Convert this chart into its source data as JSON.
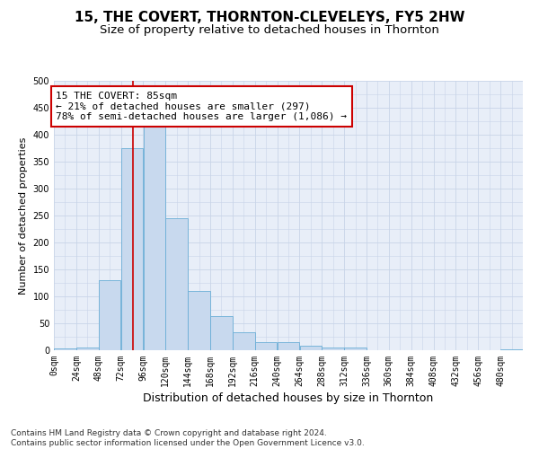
{
  "title": "15, THE COVERT, THORNTON-CLEVELEYS, FY5 2HW",
  "subtitle": "Size of property relative to detached houses in Thornton",
  "xlabel": "Distribution of detached houses by size in Thornton",
  "ylabel": "Number of detached properties",
  "bar_color": "#c8d9ee",
  "bar_edge_color": "#6aaed6",
  "bin_edges": [
    0,
    24,
    48,
    72,
    96,
    120,
    144,
    168,
    192,
    216,
    240,
    264,
    288,
    312,
    336,
    360,
    384,
    408,
    432,
    456,
    480,
    504
  ],
  "bar_heights": [
    3,
    5,
    130,
    375,
    415,
    245,
    110,
    63,
    33,
    15,
    15,
    8,
    5,
    5,
    0,
    0,
    0,
    0,
    0,
    0,
    2
  ],
  "property_line_x": 85,
  "property_line_color": "#cc0000",
  "annotation_text": "15 THE COVERT: 85sqm\n← 21% of detached houses are smaller (297)\n78% of semi-detached houses are larger (1,086) →",
  "annotation_box_color": "#ffffff",
  "annotation_box_edge_color": "#cc0000",
  "ylim": [
    0,
    500
  ],
  "xlim": [
    0,
    504
  ],
  "grid_color": "#c8d4e8",
  "background_color": "#e8eef8",
  "tick_labels": [
    "0sqm",
    "24sqm",
    "48sqm",
    "72sqm",
    "96sqm",
    "120sqm",
    "144sqm",
    "168sqm",
    "192sqm",
    "216sqm",
    "240sqm",
    "264sqm",
    "288sqm",
    "312sqm",
    "336sqm",
    "360sqm",
    "384sqm",
    "408sqm",
    "432sqm",
    "456sqm",
    "480sqm"
  ],
  "footer_text": "Contains HM Land Registry data © Crown copyright and database right 2024.\nContains public sector information licensed under the Open Government Licence v3.0.",
  "title_fontsize": 11,
  "subtitle_fontsize": 9.5,
  "xlabel_fontsize": 9,
  "ylabel_fontsize": 8,
  "tick_fontsize": 7,
  "annotation_fontsize": 8,
  "footer_fontsize": 6.5
}
